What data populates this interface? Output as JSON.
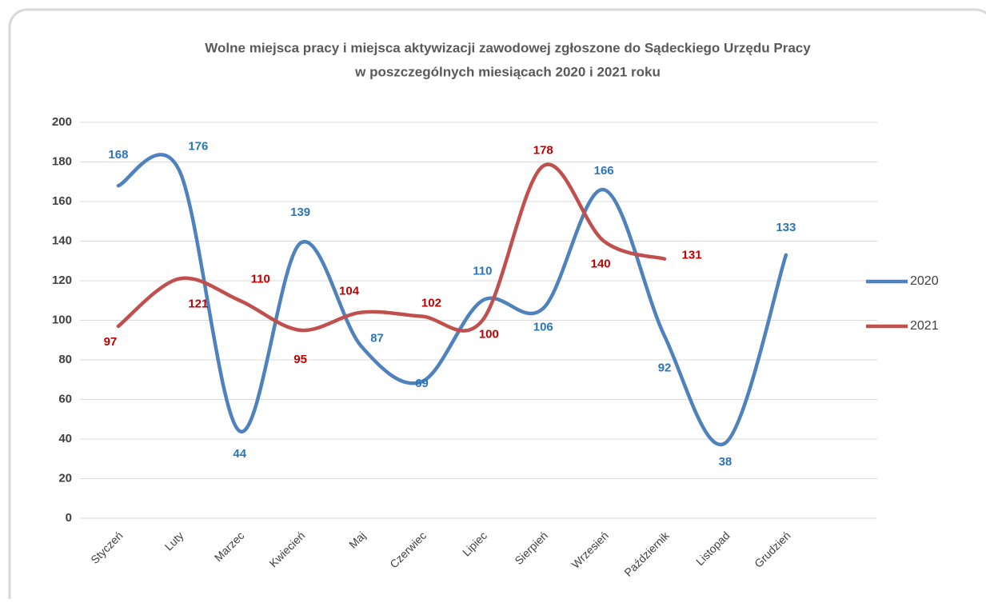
{
  "chart_data": {
    "type": "line",
    "title": [
      "Wolne miejsca pracy i miejsca aktywizacji zawodowej zgłoszone do Sądeckiego Urzędu Pracy",
      "w poszczególnych miesiącach 2020 i  2021 roku"
    ],
    "categories": [
      "Styczeń",
      "Luty",
      "Marzec",
      "Kwiecień",
      "Maj",
      "Czerwiec",
      "Lipiec",
      "Sierpień",
      "Wrzesień",
      "Październik",
      "Listopad",
      "Grudzień"
    ],
    "series": [
      {
        "name": "2020",
        "color": "#4f81bd",
        "label_color": "#2e75b6",
        "values": [
          168,
          176,
          44,
          139,
          87,
          69,
          110,
          106,
          166,
          92,
          38,
          133
        ]
      },
      {
        "name": "2021",
        "color": "#c0504d",
        "label_color": "#c00000",
        "values": [
          97,
          121,
          110,
          95,
          104,
          102,
          100,
          178,
          140,
          131,
          null,
          null
        ]
      }
    ],
    "ylim": [
      0,
      200
    ],
    "yticks": [
      0,
      20,
      40,
      60,
      80,
      100,
      120,
      140,
      160,
      180,
      200
    ],
    "grid": true,
    "smooth": true,
    "legend": "right"
  }
}
